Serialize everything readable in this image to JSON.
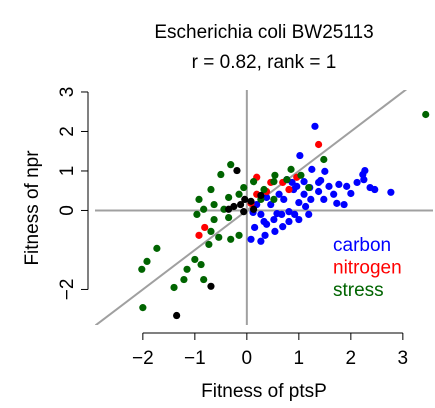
{
  "chart_data": {
    "type": "scatter",
    "title": "Escherichia coli BW25113",
    "subtitle": "r = 0.82, rank = 1",
    "x_label": "Fitness of ptsP",
    "y_label": "Fitness of npr",
    "xlim": [
      -2.92,
      3.58
    ],
    "ylim": [
      -2.9,
      3.05
    ],
    "xticks": [
      {
        "value": -2,
        "label": "−2"
      },
      {
        "value": -1,
        "label": "−1"
      },
      0,
      1,
      2,
      3
    ],
    "yticks": [
      {
        "value": -2,
        "label": "−2"
      },
      0,
      1,
      2,
      3
    ],
    "hline": 0,
    "vline": 0,
    "diagonal": true,
    "legend": "bottom-right",
    "series": [
      {
        "name": "carbon",
        "color": "#0000ff",
        "x": [
          1.31,
          1.02,
          1.25,
          1.42,
          1.58,
          1.77,
          1.92,
          2.12,
          2.23,
          2.27,
          2.37,
          2.77,
          2.46,
          2.0,
          1.67,
          1.38,
          1.1,
          0.9,
          0.71,
          0.46,
          0.27,
          0.15,
          0.08,
          0.38,
          0.58,
          0.81,
          1.0,
          1.23,
          1.48,
          1.73,
          1.87,
          1.19,
          0.92,
          0.67,
          0.52,
          0.33,
          0.12,
          0.19,
          0.38,
          0.62,
          0.87,
          1.1,
          1.38,
          1.21,
          1.5,
          0.96,
          0.77,
          2.25,
          1.0,
          0.81,
          0.69,
          0.54,
          0.35,
          0.27,
          1.13
        ],
        "y": [
          2.13,
          1.39,
          1.04,
          0.76,
          0.61,
          0.66,
          0.61,
          0.71,
          0.91,
          1.01,
          0.58,
          0.46,
          0.53,
          0.43,
          0.41,
          0.48,
          0.41,
          0.53,
          0.28,
          0.15,
          -0.1,
          -0.43,
          -0.73,
          -0.35,
          -0.08,
          -0.03,
          0.2,
          0.28,
          0.28,
          0.18,
          0.15,
          -0.1,
          -0.1,
          -0.1,
          -0.23,
          -0.28,
          -0.05,
          0.15,
          0.33,
          0.41,
          0.71,
          0.73,
          0.71,
          0.58,
          0.99,
          0.61,
          0.78,
          0.78,
          -0.23,
          -0.28,
          -0.41,
          -0.53,
          -0.63,
          -0.78,
          0.1
        ]
      },
      {
        "name": "nitrogen",
        "color": "#ff0000",
        "x": [
          1.38,
          0.19,
          0.46,
          0.69,
          0.96,
          -0.81,
          -0.92,
          0.81,
          0.19,
          0.08,
          0.38
        ],
        "y": [
          1.67,
          0.84,
          0.71,
          0.71,
          0.84,
          -0.43,
          -0.63,
          0.53,
          0.41,
          0.18,
          0.48
        ]
      },
      {
        "name": "stress",
        "color": "#006400",
        "x": [
          3.44,
          1.48,
          -0.31,
          -0.5,
          -0.69,
          -0.92,
          -0.06,
          0.13,
          0.52,
          0.77,
          1.19,
          1.04,
          0.85,
          0.54,
          0.33,
          -0.15,
          -0.35,
          -0.63,
          -0.83,
          -0.96,
          -0.63,
          -0.44,
          -0.35,
          -0.69,
          -0.54,
          -0.31,
          -0.15,
          -0.73,
          -1.0,
          -1.15,
          -1.21,
          -1.73,
          -1.92,
          -2.02,
          -0.88,
          -0.83,
          -1.4,
          -2.0,
          0.52,
          0.27
        ],
        "y": [
          2.43,
          1.29,
          1.16,
          0.91,
          0.53,
          0.28,
          0.58,
          0.73,
          0.73,
          0.78,
          0.58,
          0.89,
          1.04,
          0.89,
          0.53,
          0.41,
          0.33,
          0.15,
          0.03,
          -0.1,
          -0.23,
          0.03,
          -0.18,
          -0.53,
          -0.68,
          -0.73,
          -0.63,
          -0.86,
          -1.24,
          -1.49,
          -1.75,
          -0.96,
          -1.29,
          -1.49,
          -1.37,
          -1.75,
          -1.95,
          -2.46,
          0.28,
          0.28
        ]
      },
      {
        "color": "#000000",
        "x": [
          -0.19,
          -0.25,
          -0.12,
          -0.04,
          0.08,
          0.13,
          0.27,
          -0.06,
          -0.35,
          -0.69,
          -1.35
        ],
        "y": [
          1.01,
          0.1,
          0.15,
          0.28,
          0.23,
          0.03,
          0.38,
          -0.03,
          0.03,
          -1.92,
          -2.66
        ]
      }
    ]
  }
}
